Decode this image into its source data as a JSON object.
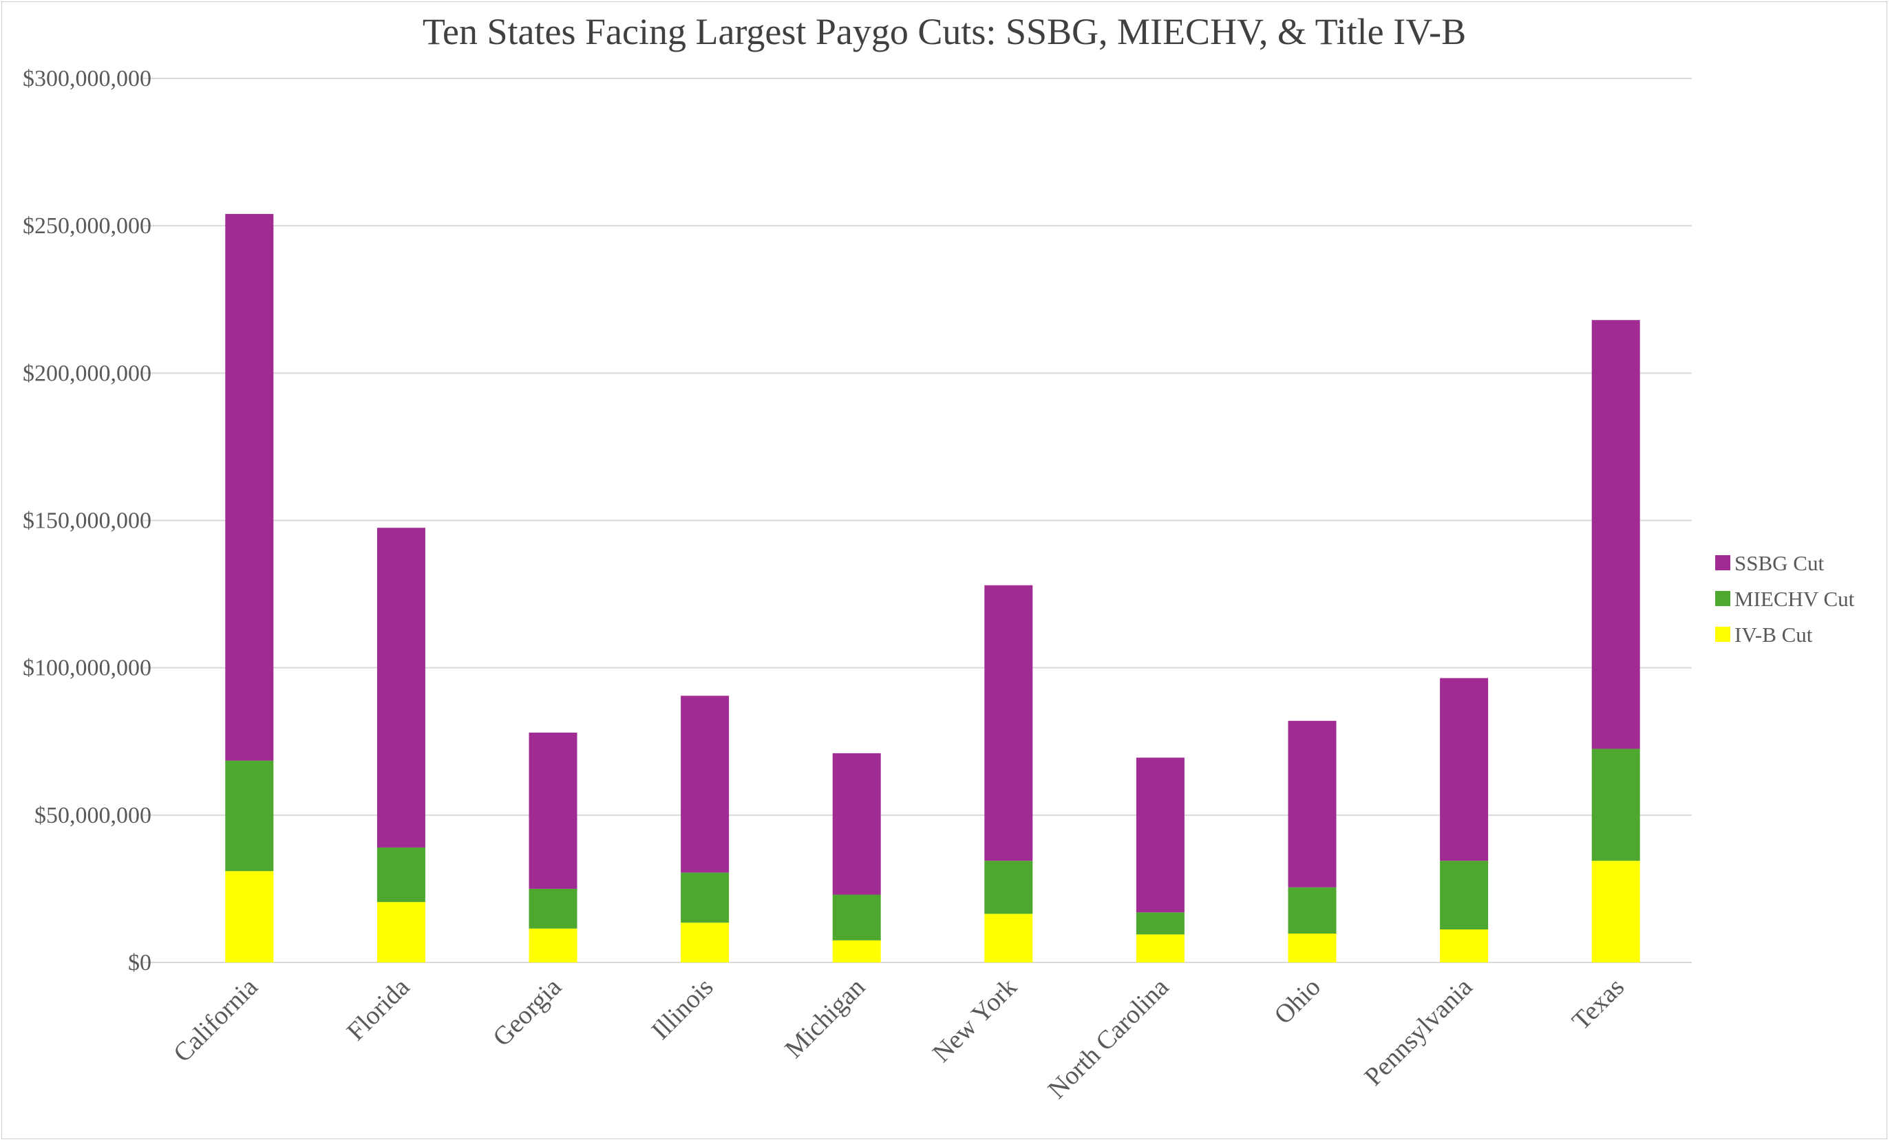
{
  "chart_data": {
    "type": "bar",
    "stacked": true,
    "title": "Ten States Facing Largest Paygo Cuts: SSBG, MIECHV, & Title IV-B",
    "xlabel": "",
    "ylabel": "",
    "ylim": [
      0,
      300000000
    ],
    "yticks": [
      0,
      50000000,
      100000000,
      150000000,
      200000000,
      250000000,
      300000000
    ],
    "ytick_labels": [
      "$0",
      "$50,000,000",
      "$100,000,000",
      "$150,000,000",
      "$200,000,000",
      "$250,000,000",
      "$300,000,000"
    ],
    "grid": true,
    "legend_position": "right",
    "categories": [
      "California",
      "Florida",
      "Georgia",
      "Illinois",
      "Michigan",
      "New York",
      "North Carolina",
      "Ohio",
      "Pennsylvania",
      "Texas"
    ],
    "series": [
      {
        "name": "IV-B Cut",
        "color": "#FFFF00",
        "values": [
          31000000,
          20500000,
          11500000,
          13500000,
          7500000,
          16500000,
          9500000,
          9800000,
          11200000,
          34500000
        ]
      },
      {
        "name": "MIECHV Cut",
        "color": "#4EA72E",
        "values": [
          37500000,
          18500000,
          13500000,
          17000000,
          15500000,
          18000000,
          7500000,
          15700000,
          23300000,
          38000000
        ]
      },
      {
        "name": "SSBG Cut",
        "color": "#A02B93",
        "values": [
          185500000,
          108500000,
          53000000,
          60000000,
          48000000,
          93500000,
          52500000,
          56500000,
          62000000,
          145500000
        ]
      }
    ],
    "legend_order": [
      "SSBG Cut",
      "MIECHV Cut",
      "IV-B Cut"
    ]
  }
}
